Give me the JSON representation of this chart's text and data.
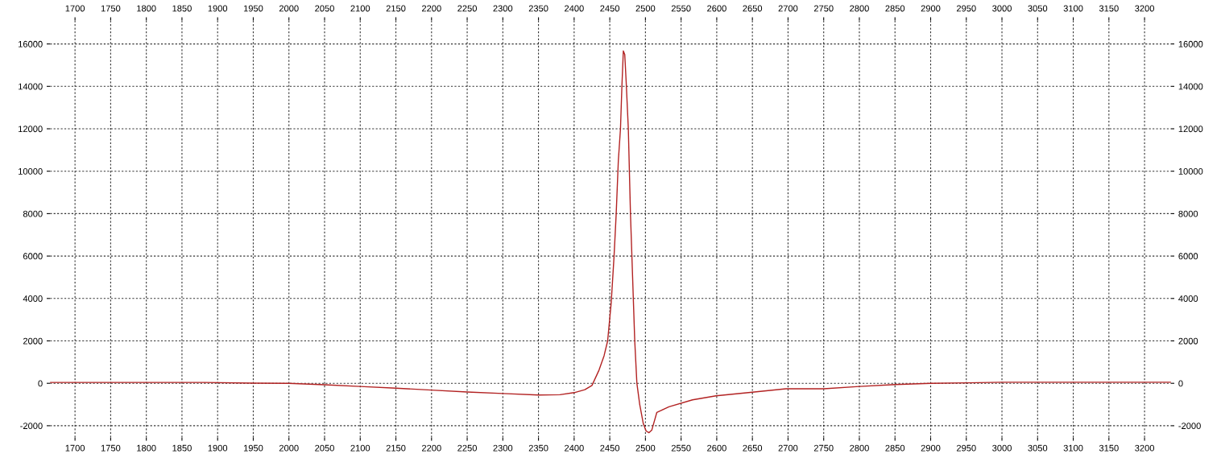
{
  "chart_data": {
    "type": "line",
    "x": [
      1665,
      1700,
      1750,
      1800,
      1880,
      1950,
      2000,
      2050,
      2100,
      2150,
      2200,
      2250,
      2300,
      2350,
      2380,
      2400,
      2415,
      2425,
      2435,
      2442,
      2447,
      2452,
      2456,
      2459,
      2462,
      2465,
      2467,
      2469,
      2471,
      2473,
      2476,
      2479,
      2482,
      2485,
      2488,
      2492,
      2497,
      2501,
      2505,
      2509,
      2516,
      2533,
      2566,
      2599,
      2650,
      2697,
      2750,
      2800,
      2850,
      2900,
      2950,
      3000,
      3100,
      3237
    ],
    "series": [
      {
        "color": "#b22222",
        "values": [
          40,
          40,
          40,
          40,
          40,
          10,
          0,
          -70,
          -150,
          -230,
          -320,
          -410,
          -480,
          -550,
          -540,
          -440,
          -300,
          -100,
          630,
          1300,
          2000,
          3800,
          6000,
          8000,
          10500,
          12000,
          14000,
          15670,
          15500,
          14200,
          12000,
          8000,
          5000,
          2000,
          0,
          -1000,
          -1900,
          -2250,
          -2330,
          -2200,
          -1370,
          -1110,
          -780,
          -590,
          -420,
          -260,
          -260,
          -150,
          -60,
          0,
          20,
          50,
          50,
          50
        ]
      }
    ],
    "xlim": [
      1665,
      3237
    ],
    "ylim": [
      -2550,
      17100
    ],
    "xticks": [
      1700,
      1750,
      1800,
      1850,
      1900,
      1950,
      2000,
      2050,
      2100,
      2150,
      2200,
      2250,
      2300,
      2350,
      2400,
      2450,
      2500,
      2550,
      2600,
      2650,
      2700,
      2750,
      2800,
      2850,
      2900,
      2950,
      3000,
      3050,
      3100,
      3150,
      3200
    ],
    "x2lim": [
      1665,
      3237
    ],
    "x2ticks": [
      1700,
      1750,
      1800,
      1850,
      1900,
      1950,
      2000,
      2050,
      2100,
      2150,
      2200,
      2250,
      2300,
      2350,
      2400,
      2450,
      2500,
      2550,
      2600,
      2650,
      2700,
      2750,
      2800,
      2850,
      2900,
      2950,
      3000,
      3050,
      3100,
      3150,
      3200
    ],
    "yticks": [
      -2000,
      0,
      2000,
      4000,
      6000,
      8000,
      10000,
      12000,
      14000,
      16000
    ],
    "y2lim": [
      -2550,
      17100
    ],
    "y2ticks": [
      -2000,
      0,
      2000,
      4000,
      6000,
      8000,
      10000,
      12000,
      14000,
      16000
    ],
    "grid": true,
    "line_style": "solid"
  }
}
